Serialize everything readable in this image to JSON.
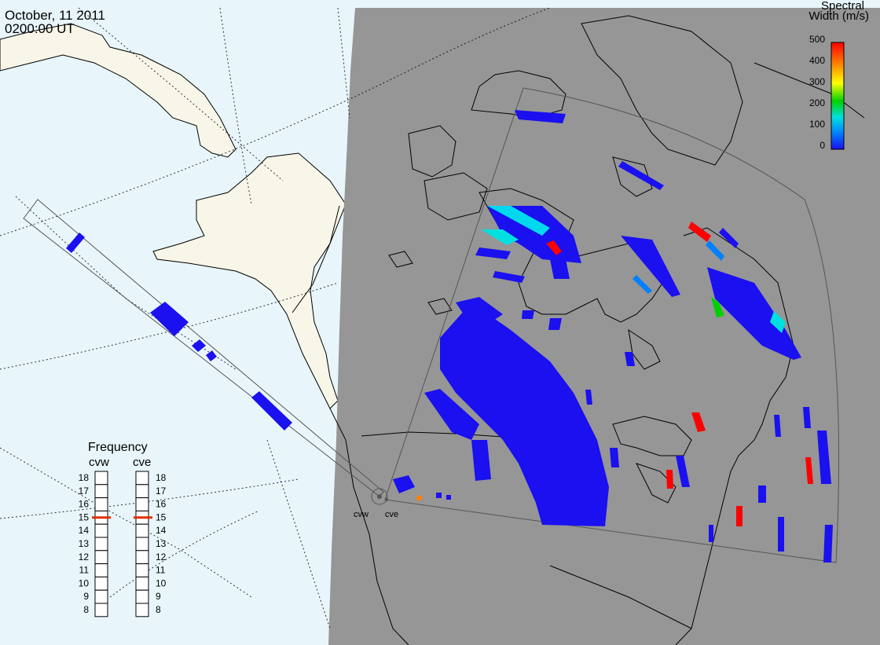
{
  "header": {
    "date": "October, 11 2011",
    "time": "0200:00 UT"
  },
  "colorbar": {
    "title_line1": "Spectral",
    "title_line2": "Width (m/s)",
    "ticks": [
      "500",
      "400",
      "300",
      "200",
      "100",
      "0"
    ],
    "colors": [
      "#ff0000",
      "#ff8000",
      "#ffff00",
      "#00d000",
      "#00e0e0",
      "#0080ff",
      "#1a10f0"
    ]
  },
  "radars": {
    "west": "cvw",
    "east": "cve"
  },
  "frequency_panel": {
    "title": "Frequency",
    "left_label": "cvw",
    "right_label": "cve",
    "ticks": [
      "18",
      "17",
      "16",
      "15",
      "14",
      "13",
      "12",
      "11",
      "10",
      "9",
      "8"
    ],
    "cvw_frequency": 15,
    "cve_frequency": 15,
    "marker_color": "#e03000"
  },
  "map_colors": {
    "ocean": "#e8f6fc",
    "land": "#f8f6e8",
    "night": "#969696",
    "scatter_low": "#1a10f0"
  }
}
